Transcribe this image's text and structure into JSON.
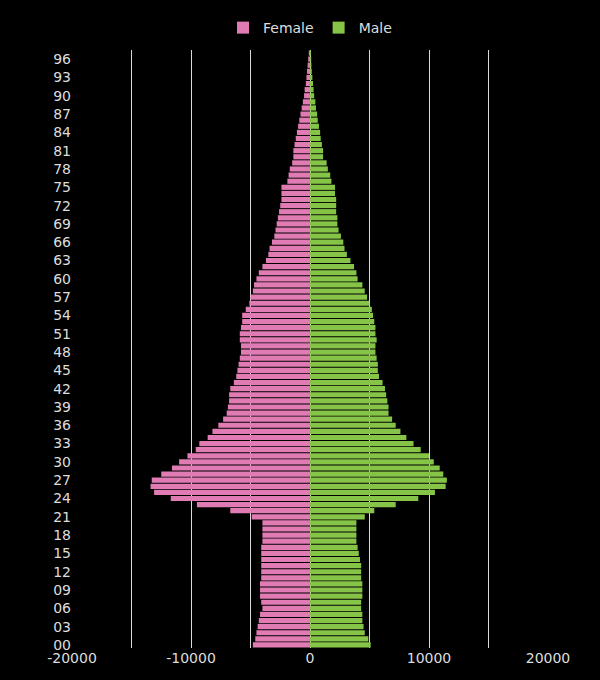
{
  "chart_data": {
    "type": "bar",
    "orientation": "horizontal",
    "grid": true,
    "legend": "top",
    "categories": [
      "00",
      null,
      null,
      "03",
      null,
      null,
      "06",
      null,
      null,
      "09",
      null,
      null,
      "12",
      null,
      null,
      "15",
      null,
      null,
      "18",
      null,
      null,
      "21",
      null,
      null,
      "24",
      null,
      null,
      "27",
      null,
      null,
      "30",
      null,
      null,
      "33",
      null,
      null,
      "36",
      null,
      null,
      "39",
      null,
      null,
      "42",
      null,
      null,
      "45",
      null,
      null,
      "48",
      null,
      null,
      "51",
      null,
      null,
      "54",
      null,
      null,
      "57",
      null,
      null,
      "60",
      null,
      null,
      "63",
      null,
      null,
      "66",
      null,
      null,
      "69",
      null,
      null,
      "72",
      null,
      null,
      "75",
      null,
      null,
      "78",
      null,
      null,
      "81",
      null,
      null,
      "84",
      null,
      null,
      "87",
      null,
      null,
      "90",
      null,
      null,
      "93",
      null,
      null,
      "96",
      null
    ],
    "series": [
      {
        "name": "Female",
        "color": "#e07bb4",
        "values": [
          -4800,
          -4600,
          -4500,
          -4400,
          -4300,
          -4200,
          -4000,
          -4100,
          -4200,
          -4200,
          -4200,
          -4100,
          -4100,
          -4100,
          -4100,
          -4100,
          -4100,
          -4000,
          -4000,
          -4000,
          -4000,
          -4900,
          -6700,
          -9500,
          -11700,
          -13100,
          -13400,
          -13300,
          -12500,
          -11600,
          -11000,
          -10300,
          -9600,
          -9300,
          -8600,
          -8200,
          -7700,
          -7300,
          -7000,
          -6900,
          -6800,
          -6800,
          -6700,
          -6400,
          -6200,
          -6100,
          -6000,
          -5900,
          -5800,
          -5800,
          -5900,
          -5900,
          -5800,
          -5700,
          -5700,
          -5400,
          -5100,
          -5000,
          -4800,
          -4700,
          -4500,
          -4300,
          -4000,
          -3700,
          -3500,
          -3400,
          -3200,
          -3000,
          -2900,
          -2800,
          -2700,
          -2600,
          -2500,
          -2400,
          -2400,
          -2400,
          -1900,
          -1800,
          -1700,
          -1500,
          -1400,
          -1400,
          -1300,
          -1200,
          -1100,
          -1000,
          -900,
          -800,
          -700,
          -600,
          -500,
          -450,
          -350,
          -300,
          -250,
          -200,
          -150,
          -100
        ]
      },
      {
        "name": "Male",
        "color": "#85c446",
        "values": [
          5100,
          4900,
          4600,
          4500,
          4400,
          4400,
          4300,
          4300,
          4400,
          4400,
          4400,
          4300,
          4300,
          4300,
          4200,
          4100,
          4000,
          3900,
          3900,
          3900,
          3900,
          4600,
          5400,
          7200,
          9100,
          10500,
          11400,
          11500,
          11200,
          10900,
          10400,
          10000,
          9300,
          8700,
          8100,
          7600,
          7200,
          6900,
          6600,
          6600,
          6500,
          6400,
          6300,
          6100,
          5800,
          5700,
          5700,
          5600,
          5500,
          5500,
          5600,
          5500,
          5500,
          5400,
          5300,
          5200,
          5000,
          4800,
          4600,
          4400,
          4000,
          3900,
          3700,
          3400,
          3100,
          2900,
          2800,
          2600,
          2400,
          2300,
          2300,
          2200,
          2200,
          2200,
          2100,
          2100,
          1800,
          1700,
          1500,
          1400,
          1100,
          1100,
          1000,
          900,
          850,
          750,
          650,
          600,
          500,
          450,
          350,
          300,
          250,
          200,
          150,
          120,
          100,
          80
        ]
      }
    ],
    "xlim": [
      -20000,
      20000
    ],
    "xticks": [
      -20000,
      -10000,
      0,
      10000,
      20000
    ]
  }
}
